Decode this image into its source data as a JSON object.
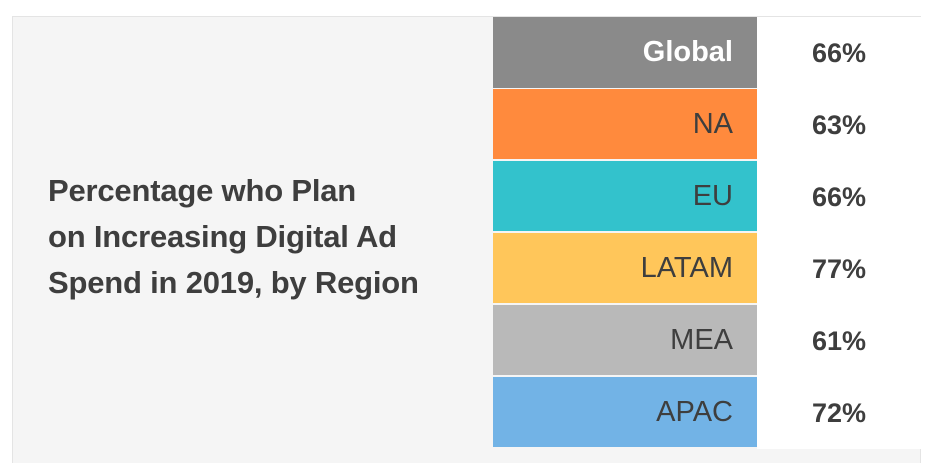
{
  "chart_data": {
    "type": "table",
    "title": "Percentage who Plan on Increasing Digital Ad Spend in 2019, by Region",
    "title_lines": [
      "Percentage who Plan",
      "on Increasing Digital Ad",
      "Spend in 2019, by Region"
    ],
    "rows": [
      {
        "region": "Global",
        "value": 66,
        "label": "66%",
        "color": "#8a8a8a"
      },
      {
        "region": "NA",
        "value": 63,
        "label": "63%",
        "color": "#ff8a3d"
      },
      {
        "region": "EU",
        "value": 66,
        "label": "66%",
        "color": "#33c2cc"
      },
      {
        "region": "LATAM",
        "value": 77,
        "label": "77%",
        "color": "#ffc65a"
      },
      {
        "region": "MEA",
        "value": 61,
        "label": "61%",
        "color": "#b9b9b9"
      },
      {
        "region": "APAC",
        "value": 72,
        "label": "72%",
        "color": "#72b3e6"
      }
    ]
  }
}
